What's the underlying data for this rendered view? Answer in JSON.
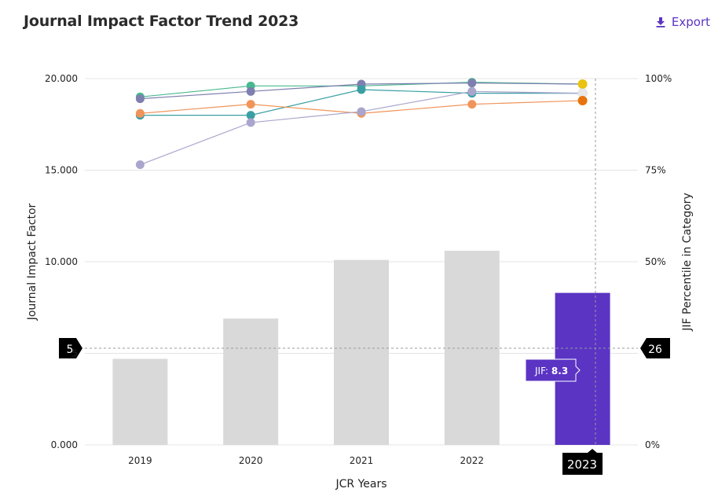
{
  "header": {
    "title": "Journal Impact Factor Trend 2023",
    "export_label": "Export"
  },
  "colors": {
    "accent": "#5b34c4",
    "bar_default": "#d9d9d9",
    "bar_highlight": "#5b34c4",
    "marker_bg": "#000000"
  },
  "chart_data": {
    "type": "bar",
    "categories": [
      "2019",
      "2020",
      "2021",
      "2022",
      "2023"
    ],
    "values": [
      4.7,
      6.9,
      10.1,
      10.6,
      8.3
    ],
    "highlight_index": 4,
    "xlabel": "JCR Years",
    "ylabel": "Journal Impact Factor",
    "y2label": "JIF Percentile in Category",
    "ylim": [
      0,
      20
    ],
    "y2lim": [
      0,
      100
    ],
    "yticks": [
      {
        "value": 0,
        "label": "0.000"
      },
      {
        "value": 5,
        "label": "5"
      },
      {
        "value": 10,
        "label": "10.000"
      },
      {
        "value": 15,
        "label": "15.000"
      },
      {
        "value": 20,
        "label": "20.000"
      }
    ],
    "y2ticks": [
      {
        "value": 0,
        "label": "0%"
      },
      {
        "value": 50,
        "label": "50%"
      },
      {
        "value": 75,
        "label": "75%"
      },
      {
        "value": 100,
        "label": "100%"
      }
    ],
    "grid": true,
    "percentile_series": [
      {
        "color": "#49b98f",
        "values": [
          95,
          98,
          98,
          99,
          98.5
        ]
      },
      {
        "color": "#7e7faf",
        "values": [
          94.5,
          96.5,
          98.5,
          98.8,
          98.5
        ]
      },
      {
        "color": "#3a9fa3",
        "values": [
          90,
          90,
          97,
          96,
          96
        ]
      },
      {
        "color": "#f0945a",
        "values": [
          90.5,
          93,
          90.5,
          93,
          94
        ]
      },
      {
        "color": "#a8a6cc",
        "values": [
          76.5,
          88,
          91,
          96.5,
          96
        ]
      }
    ],
    "end_markers": [
      {
        "color": "#e9c30e",
        "value": 98.5
      },
      {
        "color": "#e8e8e8",
        "value": 96
      },
      {
        "color": "#e8720e",
        "value": 94
      }
    ],
    "crosshair": {
      "left_label": "5",
      "right_label": "26",
      "x_label": "2023"
    },
    "tooltip": {
      "prefix": "JIF:",
      "value": "8.3"
    }
  }
}
